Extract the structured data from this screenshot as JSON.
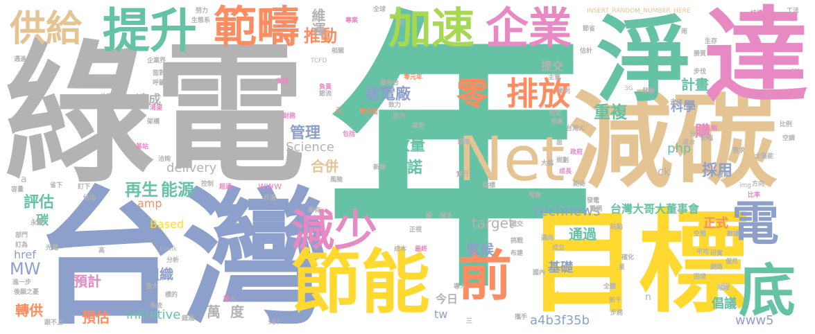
{
  "words": [
    {
      "text": "年",
      "color": "#66c2a5"
    },
    {
      "text": "綠電",
      "color": "#b3b3b3"
    },
    {
      "text": "台灣",
      "color": "#8da0cb"
    },
    {
      "text": "減碳",
      "color": "#e5c494"
    },
    {
      "text": "目標",
      "color": "#ffd92f"
    },
    {
      "text": "達",
      "color": "#e78ac3"
    },
    {
      "text": "淨",
      "color": "#66c2a5"
    },
    {
      "text": "Net",
      "color": "#e5c494"
    },
    {
      "text": "節能",
      "color": "#ffd92f"
    },
    {
      "text": "範疇",
      "color": "#fc8d62"
    },
    {
      "text": "提升",
      "color": "#66c2a5"
    },
    {
      "text": "加速",
      "color": "#a6d854"
    },
    {
      "text": "企業",
      "color": "#e78ac3"
    },
    {
      "text": "供給",
      "color": "#e5c494"
    },
    {
      "text": "前",
      "color": "#fc8d62"
    },
    {
      "text": "電",
      "color": "#8da0cb"
    },
    {
      "text": "底",
      "color": "#66c2a5"
    },
    {
      "text": "減少",
      "color": "#e78ac3"
    },
    {
      "text": "零",
      "color": "#fc8d62"
    },
    {
      "text": "排放",
      "color": "#fc8d62"
    },
    {
      "text": "推動",
      "color": "#fc8d62"
    },
    {
      "text": "維運",
      "color": "#b3b3b3"
    },
    {
      "text": "建電廠",
      "color": "#8da0cb"
    },
    {
      "text": "排放量",
      "color": "#66c2a5"
    },
    {
      "text": "承諾",
      "color": "#66c2a5"
    },
    {
      "text": "合併",
      "color": "#e5c494"
    },
    {
      "text": "再生",
      "color": "#66c2a5"
    },
    {
      "text": "能源",
      "color": "#66c2a5"
    },
    {
      "text": "評估",
      "color": "#66c2a5"
    },
    {
      "text": "重複",
      "color": "#66c2a5"
    },
    {
      "text": "計畫",
      "color": "#66c2a5"
    },
    {
      "text": "科學",
      "color": "#8da0cb"
    },
    {
      "text": "管理",
      "color": "#8da0cb"
    },
    {
      "text": "Science",
      "color": "#b3b3b3"
    },
    {
      "text": "delivery",
      "color": "#b3b3b3"
    },
    {
      "text": "php",
      "color": "#66c2a5"
    },
    {
      "text": "採用",
      "color": "#8da0cb"
    },
    {
      "text": "購",
      "color": "#e78ac3"
    },
    {
      "text": "technews",
      "color": "#8da0cb"
    },
    {
      "text": "台灣大哥大董事會",
      "color": "#66c2a5"
    },
    {
      "text": "通過",
      "color": "#66c2a5"
    },
    {
      "text": "target",
      "color": "#b3b3b3"
    },
    {
      "text": "氣候",
      "color": "#8da0cb"
    },
    {
      "text": "基礎",
      "color": "#8da0cb"
    },
    {
      "text": "正式",
      "color": "#fc8d62"
    },
    {
      "text": "MW",
      "color": "#8da0cb"
    },
    {
      "text": "組織",
      "color": "#8da0cb"
    },
    {
      "text": "預計",
      "color": "#e78ac3"
    },
    {
      "text": "預估",
      "color": "#fc8d62"
    },
    {
      "text": "轉供",
      "color": "#fc8d62"
    },
    {
      "text": "萬度",
      "color": "#b3b3b3"
    },
    {
      "text": "initiative",
      "color": "#66c2a5"
    },
    {
      "text": "a4b3f35b",
      "color": "#8da0cb"
    },
    {
      "text": "www5",
      "color": "#8da0cb"
    },
    {
      "text": "倡議",
      "color": "#66c2a5"
    },
    {
      "text": "cb",
      "color": "#ffd92f"
    },
    {
      "text": "今日",
      "color": "#b3b3b3"
    },
    {
      "text": "tw",
      "color": "#8da0cb"
    },
    {
      "text": "amp",
      "color": "#fc8d62"
    },
    {
      "text": "Based",
      "color": "#ffd92f"
    },
    {
      "text": "www",
      "color": "#e78ac3"
    },
    {
      "text": "href",
      "color": "#8da0cb"
    },
    {
      "text": "碳",
      "color": "#66c2a5"
    },
    {
      "text": "提交",
      "color": "#b3b3b3"
    },
    {
      "text": "達成",
      "color": "#b3b3b3"
    },
    {
      "text": "ck",
      "color": "#b3b3b3"
    },
    {
      "text": "INSERT_RANDOM_NUMBER_HERE",
      "color": "#e5c494"
    },
    {
      "text": "TCFD",
      "color": "#b3b3b3"
    },
    {
      "text": "_blank",
      "color": "#b3b3b3"
    },
    {
      "text": "SBT",
      "color": "#b3b3b3"
    },
    {
      "text": "3G",
      "color": "#b3b3b3"
    },
    {
      "text": "4G",
      "color": "#b3b3b3"
    },
    {
      "text": "src",
      "color": "#b3b3b3"
    },
    {
      "text": "img",
      "color": "#b3b3b3"
    },
    {
      "text": "n",
      "color": "#b3b3b3"
    },
    {
      "text": "a",
      "color": "#b3b3b3"
    },
    {
      "text": "持續",
      "color": "#e78ac3"
    },
    {
      "text": "工法",
      "color": "#b3b3b3"
    },
    {
      "text": "生存",
      "color": "#b3b3b3"
    },
    {
      "text": "勝質",
      "color": "#b3b3b3"
    },
    {
      "text": "步伐",
      "color": "#b3b3b3"
    },
    {
      "text": "去年",
      "color": "#b3b3b3"
    },
    {
      "text": "台灣大",
      "color": "#b3b3b3"
    },
    {
      "text": "人類",
      "color": "#e78ac3"
    },
    {
      "text": "適合",
      "color": "#b3b3b3"
    },
    {
      "text": "需求",
      "color": "#b3b3b3"
    },
    {
      "text": "太陽能",
      "color": "#b3b3b3"
    },
    {
      "text": "方向",
      "color": "#b3b3b3"
    },
    {
      "text": "比率",
      "color": "#e78ac3"
    },
    {
      "text": "發展",
      "color": "#b3b3b3"
    },
    {
      "text": "網路",
      "color": "#b3b3b3"
    },
    {
      "text": "困境",
      "color": "#b3b3b3"
    },
    {
      "text": "階段",
      "color": "#b3b3b3"
    },
    {
      "text": "成立",
      "color": "#b3b3b3"
    },
    {
      "text": "國內",
      "color": "#b3b3b3"
    },
    {
      "text": "挑戰",
      "color": "#b3b3b3"
    },
    {
      "text": "布建",
      "color": "#b3b3b3"
    },
    {
      "text": "全球",
      "color": "#b3b3b3"
    },
    {
      "text": "努力",
      "color": "#b3b3b3"
    },
    {
      "text": "生態系",
      "color": "#b3b3b3"
    },
    {
      "text": "企業界",
      "color": "#b3b3b3"
    },
    {
      "text": "進一步",
      "color": "#b3b3b3"
    },
    {
      "text": "後願之憂",
      "color": "#b3b3b3"
    },
    {
      "text": "跟不上",
      "color": "#b3b3b3"
    },
    {
      "text": "系統",
      "color": "#b3b3b3"
    },
    {
      "text": "錯過",
      "color": "#b3b3b3"
    },
    {
      "text": "投入",
      "color": "#e78ac3"
    },
    {
      "text": "零元年",
      "color": "#fc8d62"
    },
    {
      "text": "基地台",
      "color": "#b3b3b3"
    },
    {
      "text": "負責",
      "color": "#e78ac3"
    },
    {
      "text": "節流",
      "color": "#b3b3b3"
    },
    {
      "text": "需求面",
      "color": "#fc8d62"
    },
    {
      "text": "財務",
      "color": "#e78ac3"
    },
    {
      "text": "包括",
      "color": "#e78ac3"
    },
    {
      "text": "精準",
      "color": "#b3b3b3"
    },
    {
      "text": "新建",
      "color": "#b3b3b3"
    },
    {
      "text": "風險",
      "color": "#b3b3b3"
    },
    {
      "text": "實行",
      "color": "#b3b3b3"
    },
    {
      "text": "控制",
      "color": "#b3b3b3"
    },
    {
      "text": "超過",
      "color": "#e78ac3"
    },
    {
      "text": "升溫",
      "color": "#b3b3b3"
    },
    {
      "text": "措施",
      "color": "#b3b3b3"
    },
    {
      "text": "做法",
      "color": "#b3b3b3"
    },
    {
      "text": "站點",
      "color": "#b3b3b3"
    },
    {
      "text": "標的",
      "color": "#b3b3b3"
    },
    {
      "text": "強大",
      "color": "#b3b3b3"
    },
    {
      "text": "分析",
      "color": "#b3b3b3"
    },
    {
      "text": "光電",
      "color": "#b3b3b3"
    },
    {
      "text": "永續",
      "color": "#b3b3b3"
    },
    {
      "text": "部門",
      "color": "#b3b3b3"
    },
    {
      "text": "訂為",
      "color": "#b3b3b3"
    },
    {
      "text": "省下",
      "color": "#b3b3b3"
    },
    {
      "text": "訂下",
      "color": "#b3b3b3"
    },
    {
      "text": "容量",
      "color": "#b3b3b3"
    },
    {
      "text": "佔比",
      "color": "#b3b3b3"
    },
    {
      "text": "洽詢",
      "color": "#b3b3b3"
    },
    {
      "text": "基站",
      "color": "#e78ac3"
    },
    {
      "text": "架構",
      "color": "#b3b3b3"
    },
    {
      "text": "渴望",
      "color": "#e78ac3"
    },
    {
      "text": "公司",
      "color": "#b3b3b3"
    },
    {
      "text": "揭露",
      "color": "#b3b3b3"
    },
    {
      "text": "遇進",
      "color": "#b3b3b3"
    },
    {
      "text": "面對",
      "color": "#b3b3b3"
    },
    {
      "text": "呼籲",
      "color": "#b3b3b3"
    },
    {
      "text": "相關",
      "color": "#b3b3b3"
    },
    {
      "text": "實踐",
      "color": "#e78ac3"
    },
    {
      "text": "主管",
      "color": "#b3b3b3"
    },
    {
      "text": "衝刺",
      "color": "#b3b3b3"
    },
    {
      "text": "制定",
      "color": "#b3b3b3"
    },
    {
      "text": "落實",
      "color": "#b3b3b3"
    },
    {
      "text": "政府",
      "color": "#e78ac3"
    },
    {
      "text": "規劃",
      "color": "#b3b3b3"
    },
    {
      "text": "大幅",
      "color": "#b3b3b3"
    },
    {
      "text": "成長",
      "color": "#e78ac3"
    },
    {
      "text": "效率",
      "color": "#b3b3b3"
    },
    {
      "text": "期待",
      "color": "#b3b3b3"
    },
    {
      "text": "發電",
      "color": "#b3b3b3"
    },
    {
      "text": "電網",
      "color": "#b3b3b3"
    },
    {
      "text": "遞交",
      "color": "#b3b3b3"
    },
    {
      "text": "正視",
      "color": "#b3b3b3"
    },
    {
      "text": "最終",
      "color": "#e78ac3"
    },
    {
      "text": "成本",
      "color": "#b3b3b3"
    },
    {
      "text": "導入",
      "color": "#b3b3b3"
    },
    {
      "text": "全體",
      "color": "#b3b3b3"
    },
    {
      "text": "新千",
      "color": "#b3b3b3"
    },
    {
      "text": "步務",
      "color": "#b3b3b3"
    },
    {
      "text": "平均",
      "color": "#b3b3b3"
    },
    {
      "text": "空間",
      "color": "#b3b3b3"
    },
    {
      "text": "研實",
      "color": "#b3b3b3"
    },
    {
      "text": "偏見",
      "color": "#b3b3b3"
    },
    {
      "text": "邁向",
      "color": "#b3b3b3"
    },
    {
      "text": "確化",
      "color": "#b3b3b3"
    },
    {
      "text": "比例",
      "color": "#b3b3b3"
    },
    {
      "text": "空調",
      "color": "#b3b3b3"
    },
    {
      "text": "面臨",
      "color": "#b3b3b3"
    },
    {
      "text": "專案",
      "color": "#e78ac3"
    },
    {
      "text": "元",
      "color": "#fc8d62"
    },
    {
      "text": "估計",
      "color": "#b3b3b3"
    },
    {
      "text": "節省",
      "color": "#b3b3b3"
    },
    {
      "text": "高",
      "color": "#b3b3b3"
    },
    {
      "text": "線",
      "color": "#b3b3b3"
    },
    {
      "text": "面",
      "color": "#b3b3b3"
    },
    {
      "text": "佔",
      "color": "#b3b3b3"
    },
    {
      "text": "星",
      "color": "#b3b3b3"
    },
    {
      "text": "雨",
      "color": "#b3b3b3"
    },
    {
      "text": "分",
      "color": "#b3b3b3"
    },
    {
      "text": "三",
      "color": "#b3b3b3"
    },
    {
      "text": "致力",
      "color": "#b3b3b3"
    },
    {
      "text": "擁有",
      "color": "#b3b3b3"
    },
    {
      "text": "指標",
      "color": "#b3b3b3"
    },
    {
      "text": "攜手",
      "color": "#b3b3b3"
    },
    {
      "text": "數據",
      "color": "#b3b3b3"
    },
    {
      "text": "達到",
      "color": "#b3b3b3"
    },
    {
      "text": "能力",
      "color": "#b3b3b3"
    }
  ]
}
